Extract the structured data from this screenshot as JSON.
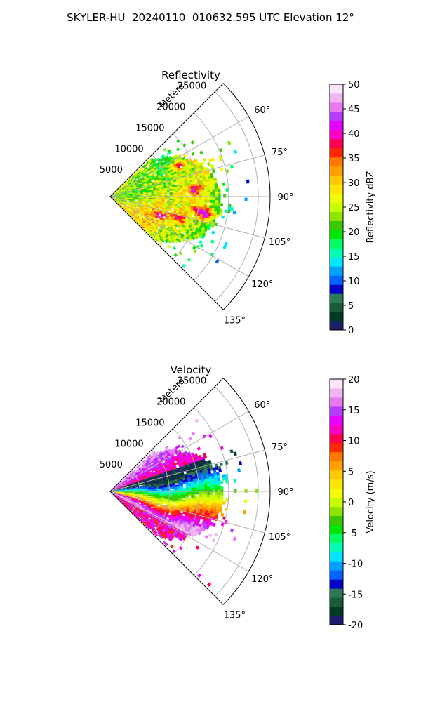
{
  "title": "SKYLER-HU  20240110  010632.595 UTC Elevation 12°",
  "chart_data": [
    {
      "type": "heatmap",
      "title": "Reflectivity",
      "radial_label": "Meters",
      "radial_ticks": [
        5000,
        10000,
        15000,
        20000,
        25000
      ],
      "rmax": 27000,
      "angle_ticks": [
        "60°",
        "75°",
        "90°",
        "105°",
        "120°",
        "135°"
      ],
      "angle_tick_values": [
        60,
        75,
        90,
        105,
        120,
        135
      ],
      "sector_deg": [
        45,
        135
      ],
      "colorbar": {
        "label": "Reflectivity dBZ",
        "range": [
          0,
          50
        ],
        "ticks": [
          0,
          5,
          10,
          15,
          20,
          25,
          30,
          35,
          40,
          45,
          50
        ],
        "colors": [
          "#1a1e6b",
          "#003a28",
          "#1c5a3c",
          "#2a7a5a",
          "#0000c8",
          "#0064ff",
          "#00a0ff",
          "#00e6ff",
          "#00ffb4",
          "#00ff64",
          "#00e600",
          "#3cc800",
          "#8ce600",
          "#c8ff00",
          "#f0ff00",
          "#ffe600",
          "#ffc800",
          "#ffa000",
          "#ff7800",
          "#ff2800",
          "#ff0050",
          "#ff00c8",
          "#e600ff",
          "#b43cff",
          "#e678f0",
          "#f0b4f0",
          "#fae6fa"
        ]
      }
    },
    {
      "type": "heatmap",
      "title": "Velocity",
      "radial_label": "Meters",
      "radial_ticks": [
        5000,
        10000,
        15000,
        20000,
        25000
      ],
      "rmax": 27000,
      "angle_ticks": [
        "60°",
        "75°",
        "90°",
        "105°",
        "120°",
        "135°"
      ],
      "angle_tick_values": [
        60,
        75,
        90,
        105,
        120,
        135
      ],
      "sector_deg": [
        45,
        135
      ],
      "colorbar": {
        "label": "Velocity (m/s)",
        "range": [
          -20,
          20
        ],
        "ticks": [
          -20,
          -15,
          -10,
          -5,
          0,
          5,
          10,
          15,
          20
        ],
        "colors": [
          "#1a1e6b",
          "#003a28",
          "#1c5a3c",
          "#2a7a5a",
          "#0000c8",
          "#0064ff",
          "#00a0ff",
          "#00e6ff",
          "#00ffb4",
          "#00ff64",
          "#00e600",
          "#3cc800",
          "#8ce600",
          "#c8ff00",
          "#f0ff00",
          "#ffe600",
          "#ffc800",
          "#ffa000",
          "#ff7800",
          "#ff2800",
          "#ff0050",
          "#ff00c8",
          "#e600ff",
          "#b43cff",
          "#e678f0",
          "#f0b4f0",
          "#fae6fa"
        ]
      }
    }
  ]
}
